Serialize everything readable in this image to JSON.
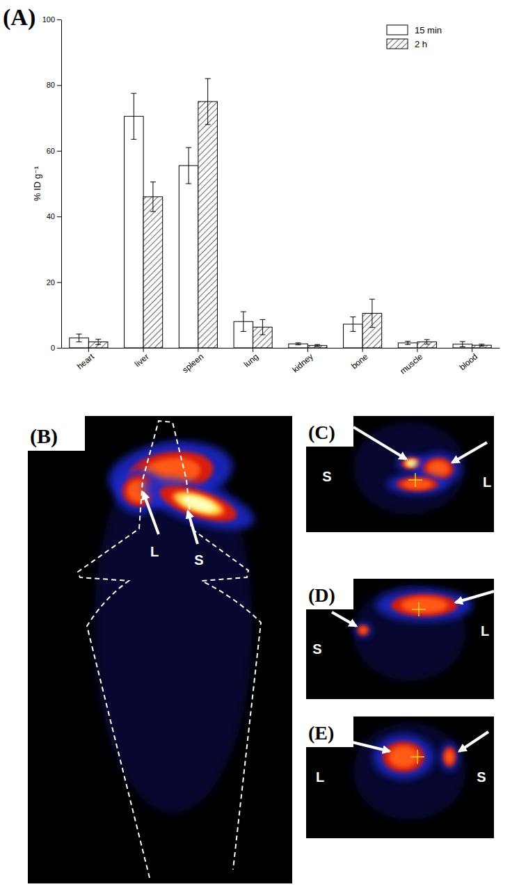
{
  "chart_data": {
    "type": "bar",
    "title": "(A)",
    "y_label": "% ID g⁻¹",
    "categories": [
      "heart",
      "liver",
      "spleen",
      "lung",
      "kidney",
      "bone",
      "muscle",
      "blood"
    ],
    "series": [
      {
        "name": "15 min",
        "color": "#ffffff",
        "values": [
          3.0,
          70.5,
          55.5,
          8.0,
          1.2,
          7.2,
          1.5,
          1.1
        ],
        "errors": [
          1.2,
          7.0,
          5.5,
          3.0,
          0.3,
          2.2,
          0.5,
          0.8
        ]
      },
      {
        "name": "2 h",
        "color": "#ffffff",
        "values": [
          1.8,
          46.0,
          75.0,
          6.3,
          0.7,
          10.5,
          1.8,
          0.8
        ],
        "errors": [
          0.8,
          4.5,
          7.0,
          2.3,
          0.3,
          4.3,
          0.7,
          0.3
        ]
      }
    ],
    "ylim": [
      0,
      100
    ],
    "yticks": [
      0,
      20,
      40,
      60,
      80,
      100
    ],
    "legend": "upper right"
  },
  "images": [
    {
      "label": "(B)",
      "annotations": [
        "L",
        "S"
      ]
    },
    {
      "label": "(C)",
      "annotations": [
        "S",
        "L"
      ]
    },
    {
      "label": "(D)",
      "annotations": [
        "L",
        "S"
      ]
    },
    {
      "label": "(E)",
      "annotations": [
        "L",
        "S"
      ]
    }
  ]
}
